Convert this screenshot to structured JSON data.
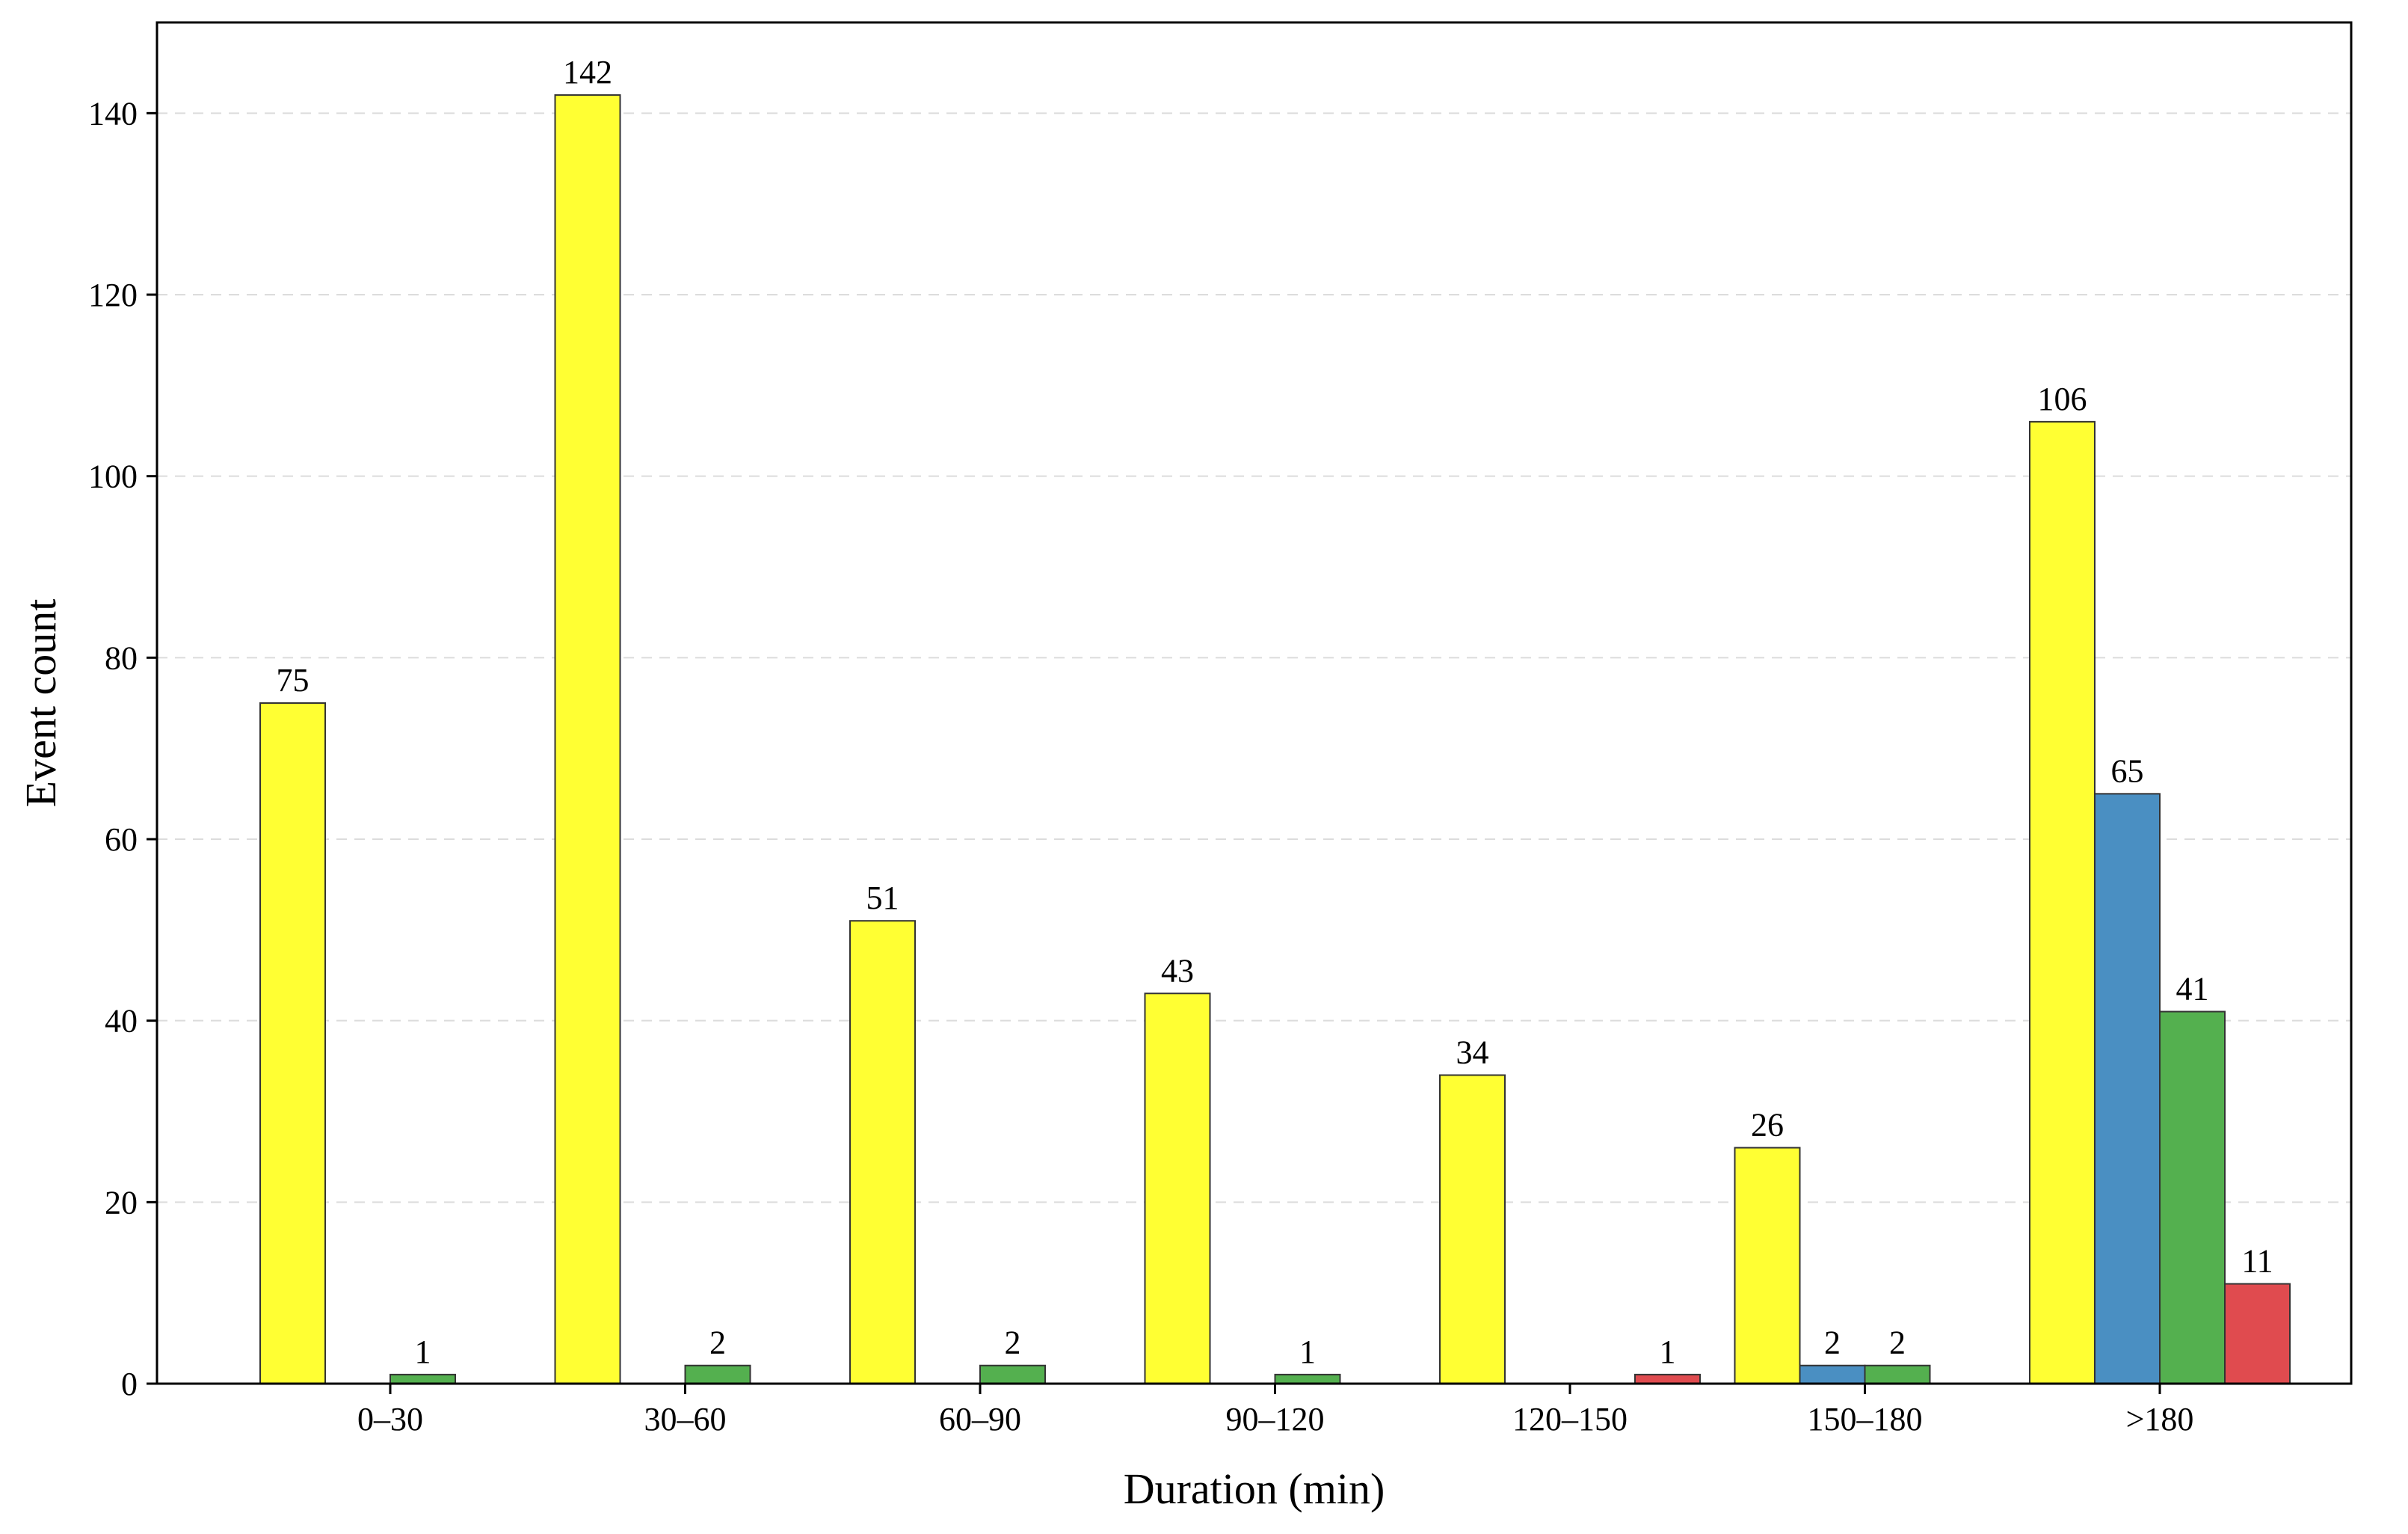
{
  "chart_data": {
    "type": "bar",
    "title": "",
    "xlabel": "Duration (min)",
    "ylabel": "Event count",
    "categories": [
      "0–30",
      "30–60",
      "60–90",
      "90–120",
      "120–150",
      "150–180",
      ">180"
    ],
    "ylim": [
      0,
      150
    ],
    "yticks": [
      0,
      20,
      40,
      60,
      80,
      100,
      120,
      140
    ],
    "grid": true,
    "legend": "none",
    "series": [
      {
        "color": "#ffff33",
        "values": [
          75,
          142,
          51,
          43,
          34,
          26,
          106
        ]
      },
      {
        "color": "#4a8fc2",
        "values": [
          0,
          0,
          0,
          0,
          0,
          2,
          65
        ]
      },
      {
        "color": "#54b04f",
        "values": [
          1,
          2,
          2,
          1,
          0,
          2,
          41
        ]
      },
      {
        "color": "#e04b4f",
        "values": [
          0,
          0,
          0,
          0,
          1,
          0,
          11
        ]
      }
    ]
  }
}
